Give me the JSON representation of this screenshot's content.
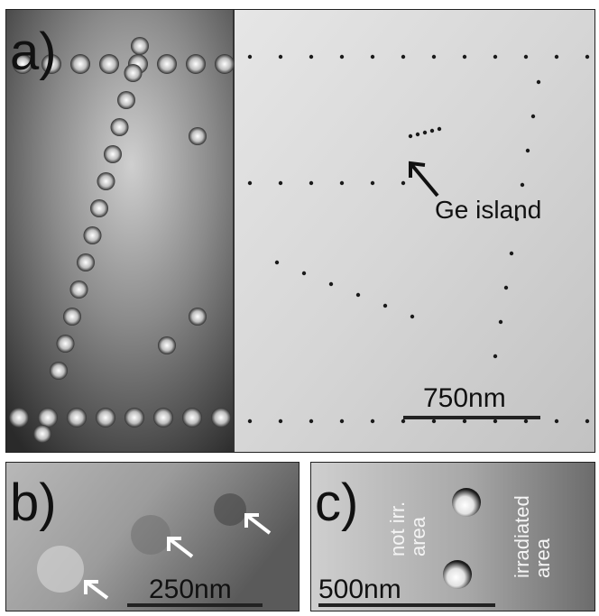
{
  "figure": {
    "panel_a": {
      "letter": "a)",
      "annotation": "Ge island",
      "scale_label": "750nm"
    },
    "panel_b": {
      "letter": "b)",
      "scale_label": "250nm"
    },
    "panel_c": {
      "letter": "c)",
      "scale_label": "500nm",
      "region_left": [
        "not irr.",
        "area"
      ],
      "region_right": [
        "irradiated",
        "area"
      ]
    }
  }
}
